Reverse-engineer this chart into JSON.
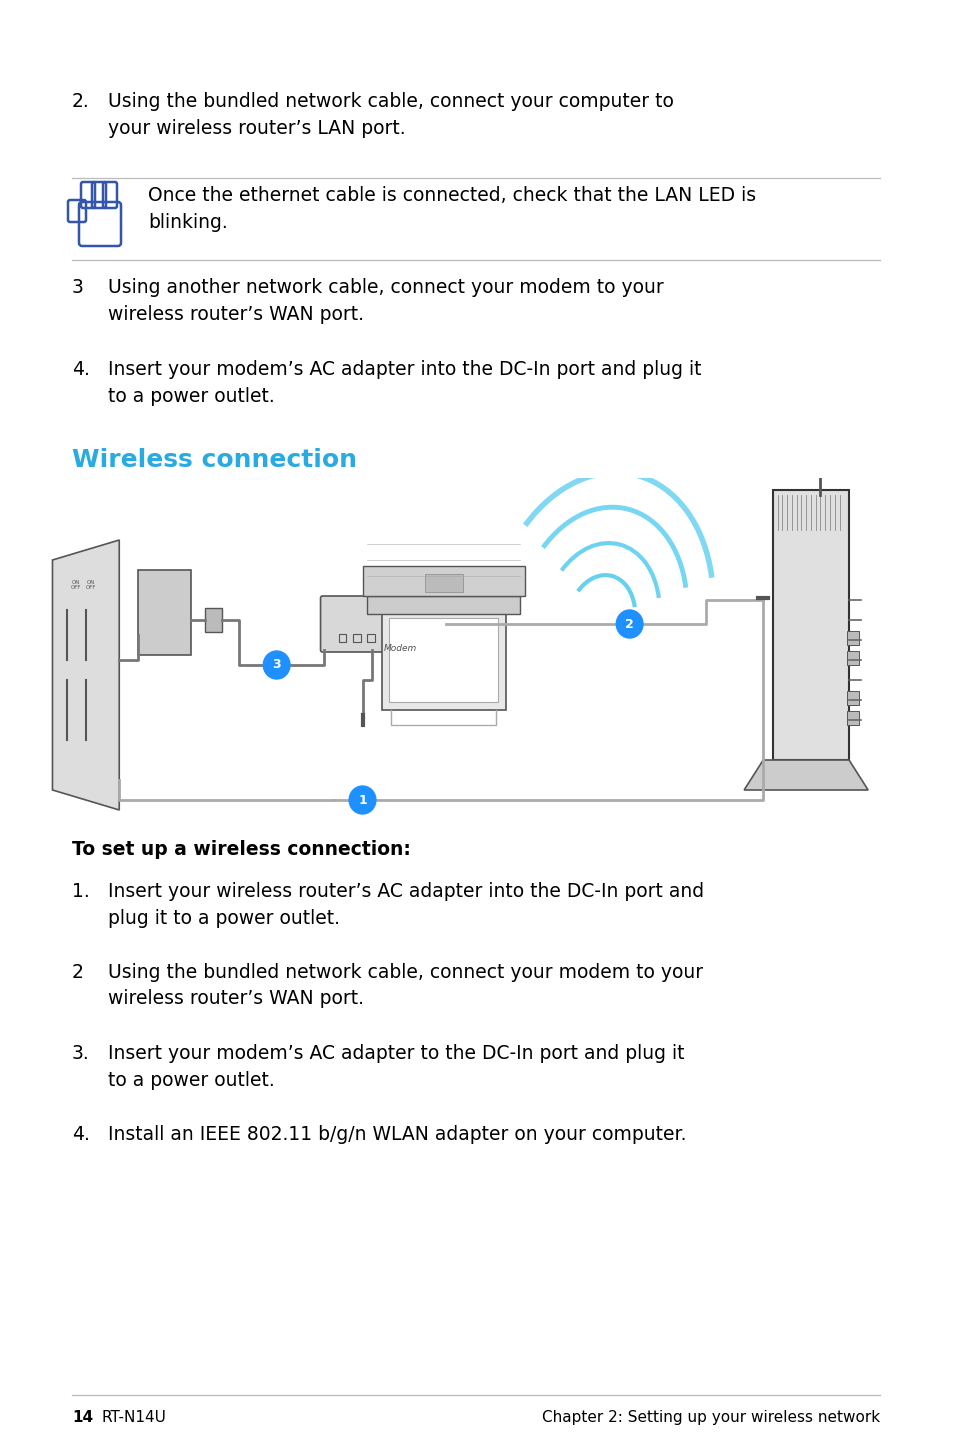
{
  "bg_color": "#ffffff",
  "text_color": "#000000",
  "cyan_color": "#29abe2",
  "blue_icon_color": "#3355aa",
  "blue_circle_color": "#1e90ff",
  "title": "Wireless connection",
  "note_text": "Once the ethernet cable is connected, check that the LAN LED is\nblinking.",
  "bold_label_text": "To set up a wireless connection:",
  "footer_page": "14",
  "footer_left": "RT-N14U",
  "footer_right": "Chapter 2: Setting up your wireless network"
}
